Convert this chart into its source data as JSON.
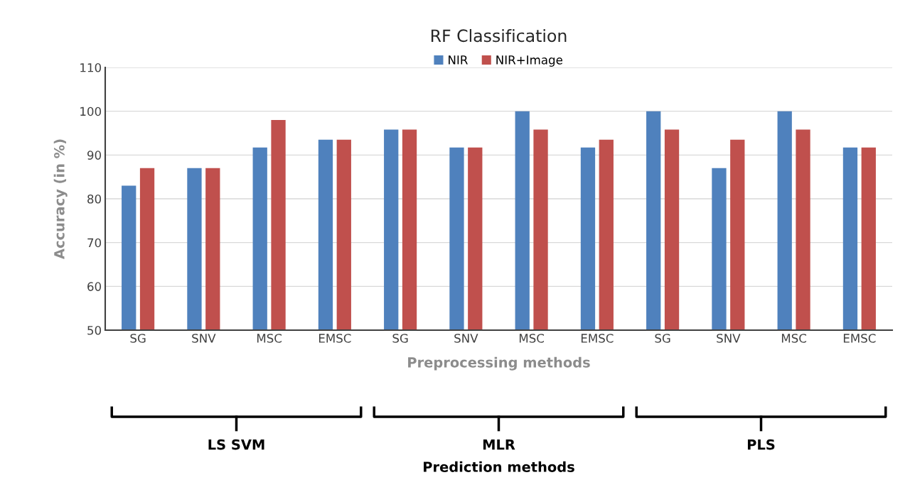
{
  "chart_data": {
    "type": "bar",
    "title": "RF Classification",
    "xlabel": "Preprocessing methods",
    "ylabel": "Accuracy (in %)",
    "categories": [
      "SG",
      "SNV",
      "MSC",
      "EMSC",
      "SG",
      "SNV",
      "MSC",
      "EMSC",
      "SG",
      "SNV",
      "MSC",
      "EMSC"
    ],
    "series": [
      {
        "name": "NIR",
        "color": "#4f81bd",
        "values": [
          83,
          87,
          91.7,
          93.5,
          95.8,
          91.7,
          100,
          91.7,
          100,
          87,
          100,
          91.7
        ]
      },
      {
        "name": "NIR+Image",
        "color": "#c0504d",
        "values": [
          87,
          87,
          98,
          93.5,
          95.8,
          91.7,
          95.8,
          93.5,
          95.8,
          93.5,
          95.8,
          91.7
        ]
      }
    ],
    "ylim": [
      50,
      110
    ],
    "yticks": [
      50,
      60,
      70,
      80,
      90,
      100,
      110
    ],
    "grid": "y",
    "legend": "top",
    "annotations": [
      "LS SVM",
      "MLR",
      "PLS",
      "Prediction methods"
    ]
  }
}
